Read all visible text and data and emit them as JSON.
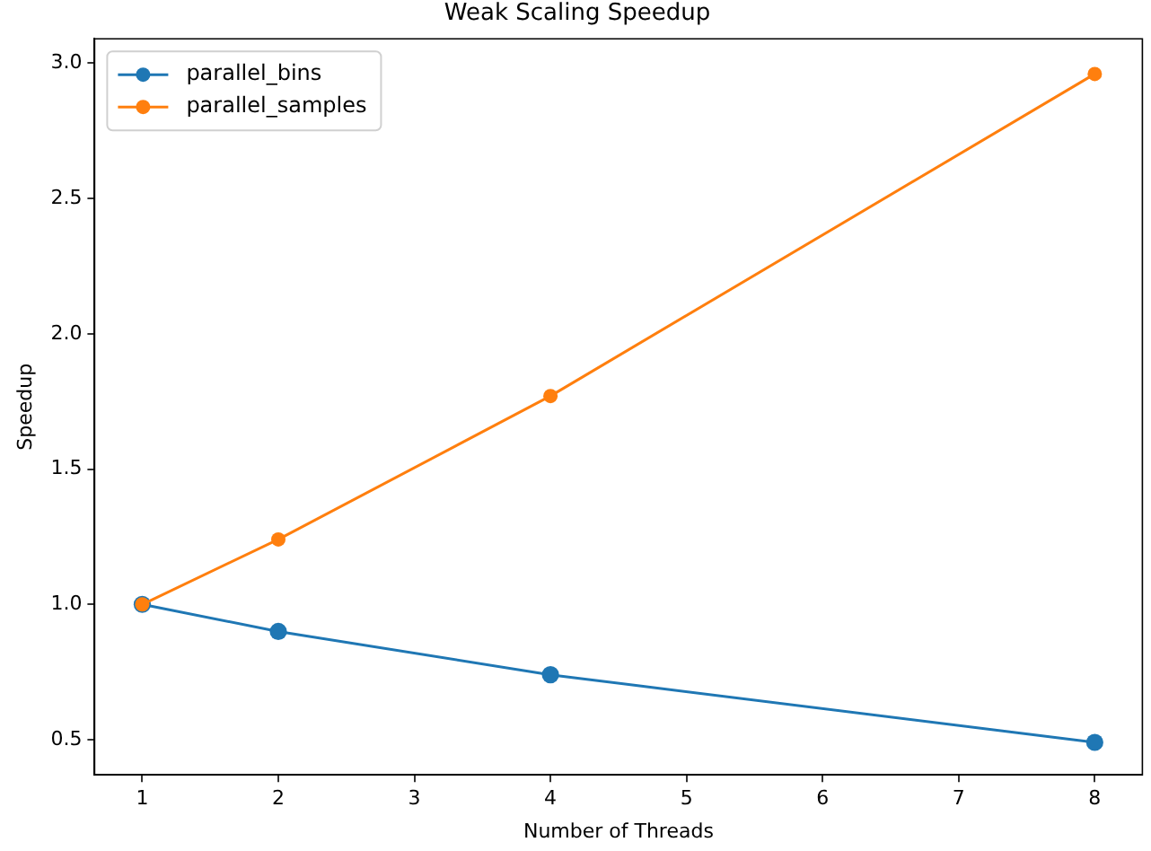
{
  "chart_data": {
    "type": "line",
    "title": "Weak Scaling Speedup",
    "xlabel": "Number of Threads",
    "ylabel": "Speedup",
    "x": [
      1,
      2,
      4,
      8
    ],
    "series": [
      {
        "name": "parallel_bins",
        "color": "#1f77b4",
        "values": [
          1.0,
          0.9,
          0.74,
          0.49
        ]
      },
      {
        "name": "parallel_samples",
        "color": "#ff7f0e",
        "values": [
          1.0,
          1.24,
          1.77,
          2.96
        ]
      }
    ],
    "xlim": [
      0.65,
      8.35
    ],
    "xticks": [
      1,
      2,
      3,
      4,
      5,
      6,
      7,
      8
    ],
    "ylim": [
      0.37,
      3.09
    ],
    "yticks": [
      0.5,
      {
        "value": 1,
        "label": "1.0"
      },
      1.5,
      {
        "value": 2,
        "label": "2.0"
      },
      2.5,
      {
        "value": 3,
        "label": "3.0"
      }
    ],
    "grid": false,
    "legend": "top left",
    "marker": "circle",
    "line_style": "solid"
  }
}
